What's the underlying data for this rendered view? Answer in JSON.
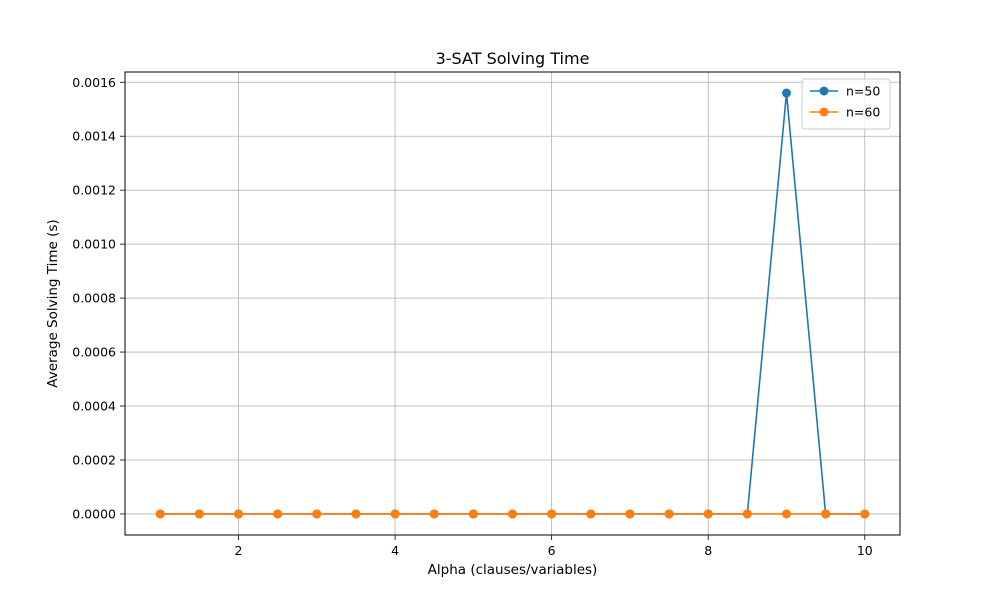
{
  "chart_data": {
    "type": "line",
    "title": "3-SAT Solving Time",
    "xlabel": "Alpha (clauses/variables)",
    "ylabel": "Average Solving Time (s)",
    "x": [
      1.0,
      1.5,
      2.0,
      2.5,
      3.0,
      3.5,
      4.0,
      4.5,
      5.0,
      5.5,
      6.0,
      6.5,
      7.0,
      7.5,
      8.0,
      8.5,
      9.0,
      9.5,
      10.0
    ],
    "xlim": [
      0.55,
      10.45
    ],
    "ylim": [
      -7.8e-05,
      0.001638
    ],
    "xticks": [
      2,
      4,
      6,
      8,
      10
    ],
    "xtick_labels": [
      "2",
      "4",
      "6",
      "8",
      "10"
    ],
    "yticks": [
      0.0,
      0.0002,
      0.0004,
      0.0006,
      0.0008,
      0.001,
      0.0012,
      0.0014,
      0.0016
    ],
    "ytick_labels": [
      "0.0000",
      "0.0002",
      "0.0004",
      "0.0006",
      "0.0008",
      "0.0010",
      "0.0012",
      "0.0014",
      "0.0016"
    ],
    "grid": true,
    "legend_position": "top-right",
    "series": [
      {
        "name": "n=50",
        "color": "#1f77b4",
        "values": [
          0,
          0,
          0,
          0,
          0,
          0,
          0,
          0,
          0,
          0,
          0,
          0,
          0,
          0,
          0,
          0,
          0.00156,
          0,
          0
        ]
      },
      {
        "name": "n=60",
        "color": "#ff7f0e",
        "values": [
          0,
          0,
          0,
          0,
          0,
          0,
          0,
          0,
          0,
          0,
          0,
          0,
          0,
          0,
          0,
          0,
          0,
          0,
          0
        ]
      }
    ]
  }
}
